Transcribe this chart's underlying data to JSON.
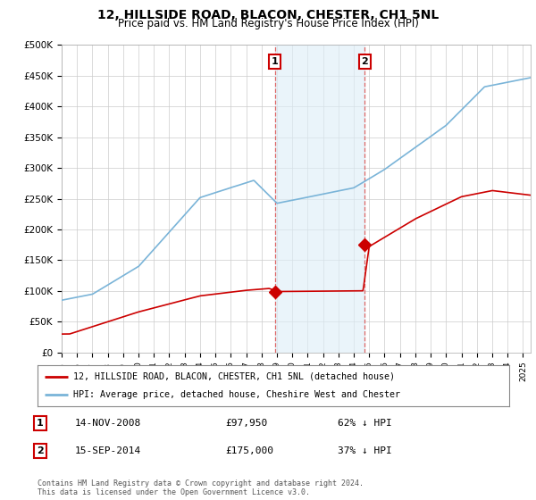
{
  "title": "12, HILLSIDE ROAD, BLACON, CHESTER, CH1 5NL",
  "subtitle": "Price paid vs. HM Land Registry's House Price Index (HPI)",
  "title_fontsize": 10,
  "subtitle_fontsize": 8.5,
  "ylabel_ticks": [
    "£0",
    "£50K",
    "£100K",
    "£150K",
    "£200K",
    "£250K",
    "£300K",
    "£350K",
    "£400K",
    "£450K",
    "£500K"
  ],
  "ytick_values": [
    0,
    50000,
    100000,
    150000,
    200000,
    250000,
    300000,
    350000,
    400000,
    450000,
    500000
  ],
  "ylim": [
    0,
    500000
  ],
  "xlim_start": 1995.0,
  "xlim_end": 2025.5,
  "sale1_x": 2008.87,
  "sale1_y": 97950,
  "sale1_label": "1",
  "sale1_date": "14-NOV-2008",
  "sale1_price": "£97,950",
  "sale1_hpi": "62% ↓ HPI",
  "sale2_x": 2014.71,
  "sale2_y": 175000,
  "sale2_label": "2",
  "sale2_date": "15-SEP-2014",
  "sale2_price": "£175,000",
  "sale2_hpi": "37% ↓ HPI",
  "hpi_color": "#7ab4d8",
  "price_color": "#cc0000",
  "vline_color": "#dd6666",
  "shade_color": "#ddeef8",
  "shade_alpha": 0.6,
  "marker_box_color_1": "#cc0000",
  "marker_box_color_2": "#cc0000",
  "legend_label_price": "12, HILLSIDE ROAD, BLACON, CHESTER, CH1 5NL (detached house)",
  "legend_label_hpi": "HPI: Average price, detached house, Cheshire West and Chester",
  "footer": "Contains HM Land Registry data © Crown copyright and database right 2024.\nThis data is licensed under the Open Government Licence v3.0.",
  "grid_color": "#cccccc",
  "bg_color": "#ffffff",
  "plot_bg_color": "#ffffff"
}
